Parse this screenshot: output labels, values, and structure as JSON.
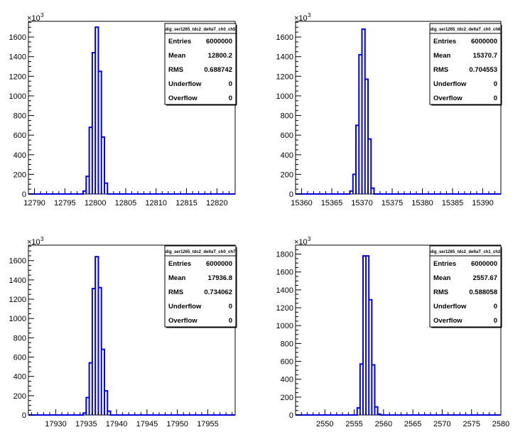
{
  "chart_data": [
    {
      "type": "bar",
      "title": "dig_ser1265_tdc2_deltaT_ch0_ch5",
      "x_range": [
        12789,
        12823
      ],
      "x_ticks": [
        "12790",
        "12795",
        "12800",
        "12805",
        "12810",
        "12815",
        "12820"
      ],
      "x_tick_values": [
        12790,
        12795,
        12800,
        12805,
        12810,
        12815,
        12820
      ],
      "y_range": [
        0,
        1760
      ],
      "y_ticks": [
        "0",
        "200",
        "400",
        "600",
        "800",
        "1000",
        "1200",
        "1400",
        "1600"
      ],
      "y_tick_values": [
        0,
        200,
        400,
        600,
        800,
        1000,
        1200,
        1400,
        1600
      ],
      "y_exponent_base": "×10",
      "y_exponent": "3",
      "bin_width": 0.5,
      "bin_low_edges": [
        12798,
        12798.5,
        12799,
        12799.5,
        12800,
        12800.5,
        12801,
        12801.5
      ],
      "counts": [
        30,
        180,
        680,
        1440,
        1700,
        1250,
        580,
        110
      ],
      "stats": {
        "entries_label": "Entries",
        "entries": "6000000",
        "mean_label": "Mean",
        "mean": "12800.2",
        "rms_label": "RMS",
        "rms": "0.688742",
        "underflow_label": "Underflow",
        "underflow": "0",
        "overflow_label": "Overflow",
        "overflow": "0"
      }
    },
    {
      "type": "bar",
      "title": "dig_ser1265_tdc2_deltaT_ch0_ch6",
      "x_range": [
        15359,
        15393
      ],
      "x_ticks": [
        "15360",
        "15365",
        "15370",
        "15375",
        "15380",
        "15385",
        "15390"
      ],
      "x_tick_values": [
        15360,
        15365,
        15370,
        15375,
        15380,
        15385,
        15390
      ],
      "y_range": [
        0,
        1760
      ],
      "y_ticks": [
        "0",
        "200",
        "400",
        "600",
        "800",
        "1000",
        "1200",
        "1400",
        "1600"
      ],
      "y_tick_values": [
        0,
        200,
        400,
        600,
        800,
        1000,
        1200,
        1400,
        1600
      ],
      "y_exponent_base": "×10",
      "y_exponent": "3",
      "bin_width": 0.5,
      "bin_low_edges": [
        15368,
        15368.5,
        15369,
        15369.5,
        15370,
        15370.5,
        15371,
        15371.5
      ],
      "counts": [
        30,
        200,
        700,
        1420,
        1680,
        1170,
        560,
        60
      ],
      "stats": {
        "entries_label": "Entries",
        "entries": "6000000",
        "mean_label": "Mean",
        "mean": "15370.7",
        "rms_label": "RMS",
        "rms": "0.704553",
        "underflow_label": "Underflow",
        "underflow": "0",
        "overflow_label": "Overflow",
        "overflow": "0"
      }
    },
    {
      "type": "bar",
      "title": "dig_ser1265_tdc2_deltaT_ch0_ch7",
      "x_range": [
        17925.5,
        17959.5
      ],
      "x_ticks": [
        "17930",
        "17935",
        "17940",
        "17945",
        "17950",
        "17955"
      ],
      "x_tick_values": [
        17930,
        17935,
        17940,
        17945,
        17950,
        17955
      ],
      "y_range": [
        0,
        1760
      ],
      "y_ticks": [
        "0",
        "200",
        "400",
        "600",
        "800",
        "1000",
        "1200",
        "1400",
        "1600"
      ],
      "y_tick_values": [
        0,
        200,
        400,
        600,
        800,
        1000,
        1200,
        1400,
        1600
      ],
      "y_exponent_base": "×10",
      "y_exponent": "3",
      "bin_width": 0.5,
      "bin_low_edges": [
        17934.5,
        17935,
        17935.5,
        17936,
        17936.5,
        17937,
        17937.5,
        17938,
        17938.5
      ],
      "counts": [
        20,
        180,
        540,
        1310,
        1640,
        1320,
        680,
        250,
        40
      ],
      "stats": {
        "entries_label": "Entries",
        "entries": "6000000",
        "mean_label": "Mean",
        "mean": "17936.8",
        "rms_label": "RMS",
        "rms": "0.734062",
        "underflow_label": "Underflow",
        "underflow": "0",
        "overflow_label": "Overflow",
        "overflow": "0"
      }
    },
    {
      "type": "bar",
      "title": "dig_ser1265_tdc2_deltaT_ch1_ch2",
      "x_range": [
        2545,
        2580
      ],
      "x_ticks": [
        "2550",
        "2555",
        "2560",
        "2565",
        "2570",
        "2575",
        "2580"
      ],
      "x_tick_values": [
        2550,
        2555,
        2560,
        2565,
        2570,
        2575,
        2580
      ],
      "y_range": [
        0,
        1900
      ],
      "y_ticks": [
        "0",
        "200",
        "400",
        "600",
        "800",
        "1000",
        "1200",
        "1400",
        "1600",
        "1800"
      ],
      "y_tick_values": [
        0,
        200,
        400,
        600,
        800,
        1000,
        1200,
        1400,
        1600,
        1800
      ],
      "y_exponent_base": "×10",
      "y_exponent": "3",
      "bin_width": 0.5,
      "bin_low_edges": [
        2555.5,
        2556,
        2556.5,
        2557,
        2557.5,
        2558,
        2558.5,
        2559
      ],
      "counts": [
        80,
        570,
        1780,
        1780,
        1290,
        560,
        90,
        10
      ],
      "stats": {
        "entries_label": "Entries",
        "entries": "6000000",
        "mean_label": "Mean",
        "mean": "2557.67",
        "rms_label": "RMS",
        "rms": "0.588058",
        "underflow_label": "Underflow",
        "underflow": "0",
        "overflow_label": "Overflow",
        "overflow": "0"
      }
    }
  ],
  "colors": {
    "histogram_line": "#0000ee",
    "frame": "#000000",
    "background": "#ffffff"
  }
}
